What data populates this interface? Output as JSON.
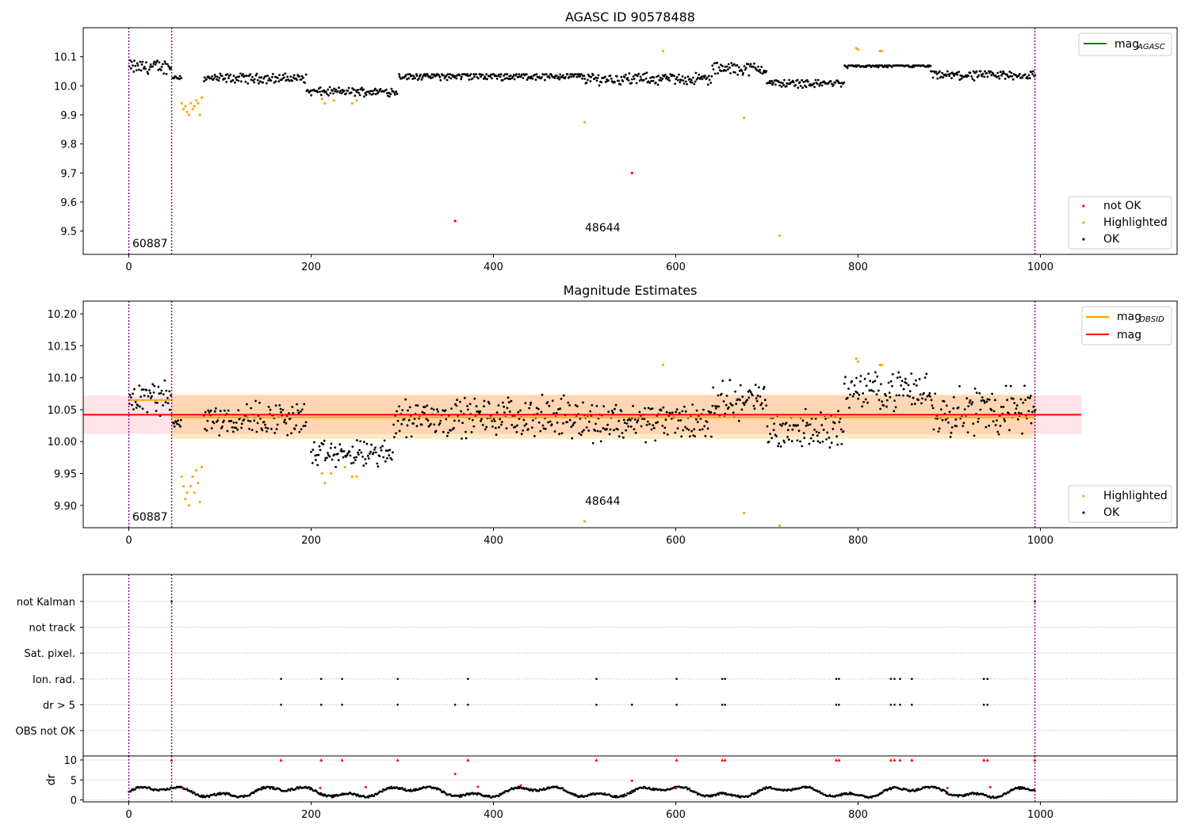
{
  "charts": [
    {
      "name": "agasc-panel",
      "title": "AGASC ID 90578488",
      "type": "scatter",
      "xlim": [
        -50,
        1150
      ],
      "ylim": [
        9.42,
        10.2
      ],
      "xticks": [
        0,
        200,
        400,
        600,
        800,
        1000
      ],
      "yticks": [
        9.5,
        9.6,
        9.7,
        9.8,
        9.9,
        10.0,
        10.1
      ],
      "ytick_labels": [
        "9.5",
        "9.6",
        "9.7",
        "9.8",
        "9.9",
        "10.0",
        "10.1"
      ],
      "vlines": [
        0,
        47,
        994
      ],
      "annotations": [
        "60887",
        "48644"
      ],
      "legend_top": {
        "entries": [
          {
            "label": "mag",
            "sub": "AGASC",
            "color": "#008000"
          }
        ],
        "position": "top-right"
      },
      "legend_bottom": {
        "entries": [
          {
            "label": "not OK",
            "color": "#ff0000"
          },
          {
            "label": "Highlighted",
            "color": "#ffa500"
          },
          {
            "label": "OK",
            "color": "#000000"
          }
        ],
        "position": "bottom-right"
      },
      "series": [
        {
          "name": "OK",
          "color": "#000000",
          "segments": [
            [
              0,
              47,
              10.065,
              10.1,
              10.03
            ],
            [
              48,
              58,
              10.03,
              10.04,
              10.02
            ],
            [
              82,
              195,
              10.03,
              10.045,
              10.0
            ],
            [
              195,
              295,
              9.98,
              10.0,
              9.96
            ],
            [
              296,
              500,
              10.05,
              10.04,
              10.0
            ],
            [
              500,
              640,
              10.02,
              10.055,
              10.0
            ],
            [
              640,
              700,
              10.07,
              10.08,
              10.02
            ],
            [
              700,
              785,
              10.02,
              10.02,
              9.98
            ],
            [
              785,
              880,
              10.08,
              10.07,
              10.05
            ],
            [
              880,
              995,
              10.05,
              10.05,
              10.0
            ]
          ]
        },
        {
          "name": "Highlighted",
          "color": "#ffa500",
          "points": [
            [
              58,
              9.94
            ],
            [
              60,
              9.92
            ],
            [
              62,
              9.93
            ],
            [
              64,
              9.91
            ],
            [
              66,
              9.9
            ],
            [
              68,
              9.94
            ],
            [
              70,
              9.92
            ],
            [
              72,
              9.93
            ],
            [
              74,
              9.95
            ],
            [
              76,
              9.94
            ],
            [
              78,
              9.9
            ],
            [
              80,
              9.96
            ],
            [
              212,
              9.955
            ],
            [
              215,
              9.94
            ],
            [
              225,
              9.95
            ],
            [
              245,
              9.94
            ],
            [
              250,
              9.95
            ],
            [
              500,
              9.875
            ],
            [
              586,
              10.12
            ],
            [
              675,
              9.89
            ],
            [
              714,
              9.485
            ],
            [
              798,
              10.13
            ],
            [
              800,
              10.125
            ],
            [
              824,
              10.12
            ],
            [
              826,
              10.12
            ]
          ]
        },
        {
          "name": "not OK",
          "color": "#ff0000",
          "points": [
            [
              358,
              9.535
            ],
            [
              552,
              9.7
            ]
          ]
        }
      ]
    },
    {
      "name": "magnitude-panel",
      "title": "Magnitude Estimates",
      "type": "scatter",
      "xlim": [
        -50,
        1150
      ],
      "ylim": [
        9.865,
        10.22
      ],
      "xticks": [
        0,
        200,
        400,
        600,
        800,
        1000
      ],
      "yticks": [
        9.9,
        9.95,
        10.0,
        10.05,
        10.1,
        10.15,
        10.2
      ],
      "ytick_labels": [
        "9.90",
        "9.95",
        "10.00",
        "10.05",
        "10.10",
        "10.15",
        "10.20"
      ],
      "vlines": [
        0,
        47,
        994
      ],
      "annotations": [
        "60887",
        "48644"
      ],
      "bands": [
        {
          "color": "#ffc0cb",
          "opacity": 0.45,
          "x": [
            -50,
            1045
          ],
          "y": [
            10.012,
            10.072
          ]
        },
        {
          "color": "#ffa500",
          "opacity": 0.22,
          "x": [
            47,
            994
          ],
          "y": [
            10.004,
            10.074
          ]
        }
      ],
      "lines": [
        {
          "label": "mag",
          "sub": "OBSID",
          "color": "#ffa500",
          "x": [
            0,
            47
          ],
          "y": 10.065
        },
        {
          "label": "mag",
          "sub": "OBSID",
          "color": "#ffa500",
          "x": [
            47,
            994
          ],
          "y": 10.038
        },
        {
          "label": "mag",
          "color": "#ff0000",
          "x": [
            -50,
            1045
          ],
          "y": 10.042
        }
      ],
      "legend_top": {
        "entries": [
          {
            "label": "mag",
            "sub": "OBSID",
            "color": "#ffa500"
          },
          {
            "label": "mag",
            "color": "#ff0000"
          }
        ],
        "position": "top-right"
      },
      "legend_bottom": {
        "entries": [
          {
            "label": "Highlighted",
            "color": "#ffa500"
          },
          {
            "label": "OK",
            "color": "#000000"
          }
        ],
        "position": "bottom-right"
      },
      "series": [
        {
          "name": "OK",
          "color": "#000000",
          "segments": [
            [
              0,
              47,
              10.065,
              10.11,
              10.03
            ],
            [
              48,
              58,
              10.03,
              10.04,
              10.02
            ],
            [
              82,
              195,
              10.035,
              10.075,
              10.0
            ],
            [
              200,
              290,
              9.98,
              10.01,
              9.95
            ],
            [
              290,
              500,
              10.04,
              10.08,
              9.995
            ],
            [
              500,
              640,
              10.025,
              10.08,
              9.995
            ],
            [
              640,
              700,
              10.07,
              10.1,
              10.02
            ],
            [
              700,
              785,
              10.02,
              10.06,
              9.98
            ],
            [
              785,
              880,
              10.08,
              10.12,
              10.04
            ],
            [
              880,
              995,
              10.05,
              10.105,
              9.99
            ]
          ]
        },
        {
          "name": "Highlighted",
          "color": "#ffa500",
          "points": [
            [
              58,
              9.945
            ],
            [
              60,
              9.93
            ],
            [
              62,
              9.91
            ],
            [
              64,
              9.92
            ],
            [
              66,
              9.9
            ],
            [
              68,
              9.93
            ],
            [
              70,
              9.945
            ],
            [
              72,
              9.92
            ],
            [
              74,
              9.955
            ],
            [
              76,
              9.935
            ],
            [
              78,
              9.905
            ],
            [
              80,
              9.96
            ],
            [
              212,
              9.95
            ],
            [
              215,
              9.935
            ],
            [
              222,
              9.95
            ],
            [
              237,
              9.96
            ],
            [
              245,
              9.945
            ],
            [
              250,
              9.945
            ],
            [
              500,
              9.875
            ],
            [
              586,
              10.12
            ],
            [
              675,
              9.888
            ],
            [
              714,
              9.868
            ],
            [
              798,
              10.13
            ],
            [
              800,
              10.125
            ],
            [
              824,
              10.12
            ],
            [
              826,
              10.12
            ]
          ]
        }
      ]
    },
    {
      "name": "flags-panel",
      "type": "scatter",
      "xlim": [
        -50,
        1150
      ],
      "categories": [
        "not Kalman",
        "not track",
        "Sat. pixel.",
        "Ion. rad.",
        "dr > 5",
        "OBS not OK"
      ],
      "vlines": [
        0,
        47,
        994
      ],
      "flag_points": {
        "Ion. rad.": [
          167,
          211,
          234,
          295,
          372,
          513,
          601,
          651,
          654,
          776,
          779,
          836,
          840,
          846,
          859,
          938,
          942
        ],
        "dr > 5": [
          167,
          211,
          234,
          295,
          358,
          372,
          513,
          552,
          601,
          651,
          654,
          776,
          779,
          836,
          840,
          846,
          859,
          938,
          942
        ],
        "not Kalman": [
          47,
          994
        ]
      }
    },
    {
      "name": "dr-panel",
      "type": "scatter",
      "xlim": [
        -50,
        1150
      ],
      "ylabel": "dr",
      "ylim": [
        -0.5,
        11
      ],
      "yticks": [
        0,
        5,
        10
      ],
      "ytick_labels": [
        "0",
        "5",
        "10"
      ],
      "vlines": [
        0,
        47,
        994
      ],
      "red_caps": [
        47,
        167,
        211,
        234,
        295,
        372,
        513,
        601,
        651,
        654,
        776,
        779,
        836,
        840,
        846,
        859,
        938,
        942,
        994
      ],
      "red_points": [
        [
          358,
          6.5
        ],
        [
          552,
          4.8
        ],
        [
          60,
          3.0
        ],
        [
          210,
          3.0
        ],
        [
          260,
          3.2
        ],
        [
          383,
          3.3
        ],
        [
          430,
          3.6
        ],
        [
          600,
          2.9
        ],
        [
          898,
          3.0
        ],
        [
          945,
          3.2
        ]
      ]
    }
  ]
}
